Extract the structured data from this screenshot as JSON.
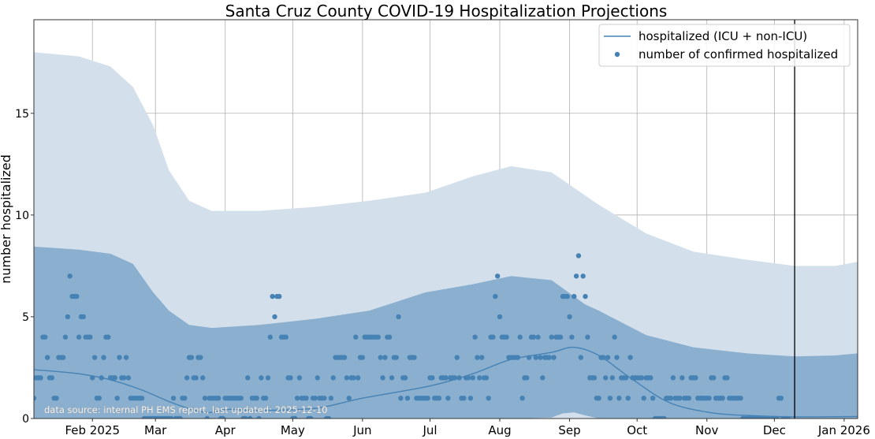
{
  "chart_data": {
    "type": "line",
    "title": "Santa Cruz County COVID-19 Hospitalization Projections",
    "xlabel": "",
    "ylabel": "number hospitalized",
    "x_units": "day of year 2025 (0 = Jan 1 2025)",
    "xlim": [
      5,
      371
    ],
    "ylim": [
      0,
      19.6
    ],
    "grid": true,
    "legend_placement": "top-right",
    "x_ticks": [
      {
        "day": 31,
        "label": "Feb 2025"
      },
      {
        "day": 59,
        "label": "Mar"
      },
      {
        "day": 90,
        "label": "Apr"
      },
      {
        "day": 120,
        "label": "May"
      },
      {
        "day": 151,
        "label": "Jun"
      },
      {
        "day": 181,
        "label": "Jul"
      },
      {
        "day": 212,
        "label": "Aug"
      },
      {
        "day": 243,
        "label": "Sep"
      },
      {
        "day": 273,
        "label": "Oct"
      },
      {
        "day": 304,
        "label": "Nov"
      },
      {
        "day": 334,
        "label": "Dec"
      },
      {
        "day": 365,
        "label": "Jan 2026"
      }
    ],
    "y_ticks": [
      {
        "value": 0,
        "label": "0"
      },
      {
        "value": 5,
        "label": "5"
      },
      {
        "value": 10,
        "label": "10"
      },
      {
        "value": 15,
        "label": "15"
      }
    ],
    "vertical_line_day": 343,
    "annotation": "data source: internal PH EMS report, last updated: 2025-12-10",
    "legend": [
      {
        "label": "hospitalized (ICU + non-ICU)",
        "kind": "line"
      },
      {
        "label": "number of confirmed hospitalized",
        "kind": "dot"
      }
    ],
    "colors": {
      "series": "#4682b4",
      "outer_band": "#d3e0ec",
      "inner_band": "#8aafcf",
      "vline": "#000000"
    },
    "outer_band": {
      "x": [
        5,
        25,
        39,
        49,
        58,
        65,
        74,
        84,
        105,
        130,
        154,
        179,
        200,
        217,
        235,
        256,
        277,
        298,
        322,
        343,
        361,
        371
      ],
      "upper": [
        18.0,
        17.8,
        17.3,
        16.3,
        14.4,
        12.2,
        10.7,
        10.2,
        10.2,
        10.4,
        10.7,
        11.1,
        11.9,
        12.4,
        12.1,
        10.5,
        9.1,
        8.2,
        7.8,
        7.5,
        7.5,
        7.7
      ],
      "lower": [
        0,
        0,
        0,
        0,
        0,
        0,
        0,
        0,
        0,
        0,
        0,
        0,
        0,
        0,
        0,
        0,
        0,
        0,
        0,
        0,
        0,
        0
      ]
    },
    "inner_band": {
      "x": [
        5,
        25,
        39,
        49,
        58,
        65,
        74,
        84,
        105,
        130,
        154,
        179,
        200,
        217,
        235,
        240,
        245,
        250,
        256,
        277,
        298,
        322,
        343,
        361,
        371
      ],
      "upper": [
        8.45,
        8.3,
        8.1,
        7.6,
        6.2,
        5.3,
        4.6,
        4.45,
        4.6,
        4.9,
        5.3,
        6.2,
        6.6,
        7.0,
        6.8,
        6.4,
        6.0,
        5.6,
        5.3,
        4.1,
        3.5,
        3.2,
        3.05,
        3.1,
        3.2
      ],
      "lower": [
        0,
        0,
        0,
        0,
        0,
        0,
        0,
        0,
        0,
        0,
        0,
        0,
        0,
        0,
        0.05,
        0.25,
        0.3,
        0.15,
        0,
        0,
        0,
        0,
        0,
        0,
        0
      ]
    },
    "series": [
      {
        "name": "hospitalized (ICU + non-ICU)",
        "x": [
          5,
          25,
          39,
          53,
          67,
          81,
          91,
          105,
          130,
          151,
          181,
          200,
          217,
          235,
          245,
          256,
          270,
          287,
          305,
          322,
          343,
          371
        ],
        "y": [
          2.4,
          2.2,
          1.9,
          1.4,
          0.75,
          0.3,
          0.45,
          0.4,
          0.5,
          1.0,
          1.6,
          2.2,
          2.9,
          3.25,
          3.5,
          3.1,
          2.0,
          0.8,
          0.3,
          0.15,
          0.08,
          0.1
        ]
      },
      {
        "name": "number of confirmed hospitalized",
        "x_start": 5,
        "y": [
          1,
          2,
          2,
          2,
          4,
          4,
          3,
          2,
          2,
          1,
          1,
          3,
          3,
          3,
          4,
          5,
          7,
          6,
          6,
          6,
          4,
          5,
          5,
          4,
          4,
          4,
          2,
          3,
          1,
          1,
          2,
          3,
          4,
          4,
          2,
          2,
          2,
          1,
          3,
          2,
          2,
          3,
          2,
          1,
          1,
          1,
          1,
          1,
          1,
          0,
          0,
          0,
          0,
          0,
          0,
          0,
          0,
          0,
          0,
          0,
          0,
          0,
          1,
          0,
          0,
          0,
          1,
          1,
          2,
          3,
          3,
          2,
          2,
          3,
          3,
          2,
          1,
          0,
          1,
          1,
          1,
          1,
          1,
          0,
          0,
          1,
          1,
          1,
          1,
          1,
          1,
          1,
          1,
          0,
          0,
          2,
          0,
          1,
          1,
          1,
          0,
          2,
          1,
          1,
          2,
          4,
          6,
          5,
          6,
          6,
          4,
          4,
          4,
          2,
          2,
          0,
          0,
          1,
          2,
          1,
          1,
          1,
          0,
          0,
          1,
          1,
          2,
          1,
          1,
          1,
          0,
          0,
          1,
          2,
          3,
          3,
          3,
          3,
          3,
          2,
          1,
          2,
          2,
          4,
          2,
          3,
          3,
          4,
          4,
          4,
          4,
          4,
          4,
          4,
          3,
          2,
          3,
          4,
          4,
          2,
          3,
          3,
          5,
          1,
          2,
          2,
          1,
          3,
          3,
          3,
          1,
          1,
          1,
          1,
          1,
          1,
          2,
          2,
          1,
          1,
          1,
          2,
          2,
          2,
          1,
          2,
          2,
          2,
          3,
          2,
          1,
          1,
          2,
          2,
          1,
          2,
          4,
          3,
          2,
          3,
          2,
          2,
          1,
          4,
          4,
          6,
          7,
          5,
          4,
          4,
          4,
          3,
          3,
          3,
          3,
          3,
          4,
          1,
          2,
          2,
          3,
          4,
          4,
          3,
          4,
          3,
          2,
          3,
          3,
          3,
          4,
          3,
          4,
          4,
          4,
          6,
          6,
          6,
          5,
          4,
          6,
          7,
          8,
          3,
          7,
          6,
          4,
          2,
          2,
          2,
          1,
          1,
          3,
          3,
          2,
          3,
          1,
          2,
          4,
          3,
          1,
          2,
          2,
          2,
          1,
          3,
          2,
          2,
          2,
          2,
          2,
          1,
          2,
          2,
          2,
          1,
          0,
          0,
          0,
          0,
          0,
          1,
          1,
          1,
          2,
          1,
          1,
          1,
          2,
          1,
          1,
          1,
          2,
          2,
          2,
          1,
          1,
          1,
          1,
          1,
          1,
          2,
          2,
          1,
          1,
          1,
          1,
          2,
          2,
          1,
          1,
          1,
          1,
          1,
          1,
          0,
          0,
          0,
          0,
          0,
          0,
          0,
          0,
          0,
          0,
          0,
          0,
          0,
          0,
          0,
          0,
          1,
          1,
          0,
          0,
          0
        ]
      }
    ]
  }
}
